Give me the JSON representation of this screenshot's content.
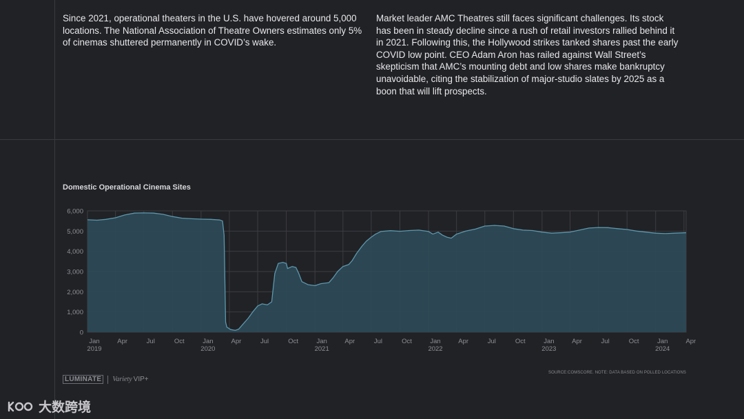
{
  "text": {
    "para_left": "Since 2021, operational theaters in the U.S. have hovered around 5,000 locations. The National Association of Theatre Owners estimates only 5% of cinemas shuttered permanently in COVID’s wake.",
    "para_right": "Market leader AMC Theatres still faces significant challenges. Its stock has been in steady decline since a rush of retail investors rallied behind it in 2021. Following this, the Hollywood strikes tanked shares past the early COVID low point. CEO Adam Aron has railed against Wall Street’s skepticism that AMC’s mounting debt and low shares make bankruptcy unavoidable, citing the stabilization of major-studio slates by 2025 as a boon that will lift prospects.",
    "source": "SOURCE:COMSCORE. NOTE: DATA BASED ON POLLED LOCATIONS",
    "logo_luminate": "LUMINATE",
    "logo_variety": "Variety",
    "logo_vip": "VIP+",
    "watermark": "大数跨境"
  },
  "colors": {
    "background": "#212226",
    "line": "#5b98ae",
    "fill": "#2e4a59",
    "grid": "#3c3d42"
  },
  "chart_data": {
    "type": "area",
    "title": "Domestic Operational Cinema Sites",
    "xlabel": "",
    "ylabel": "",
    "ylim": [
      0,
      6000
    ],
    "yticks": [
      0,
      1000,
      2000,
      3000,
      4000,
      5000,
      6000
    ],
    "ytick_labels": [
      "0",
      "1,000",
      "2,000",
      "3,000",
      "4,000",
      "5,000",
      "6,000"
    ],
    "xlim": [
      "2019-01-01",
      "2024-04-08"
    ],
    "xticks": [
      {
        "date": "2019-01-01",
        "label": "Jan",
        "year": "2019"
      },
      {
        "date": "2019-04-01",
        "label": "Apr",
        "year": ""
      },
      {
        "date": "2019-07-01",
        "label": "Jul",
        "year": ""
      },
      {
        "date": "2019-10-01",
        "label": "Oct",
        "year": ""
      },
      {
        "date": "2020-01-01",
        "label": "Jan",
        "year": "2020"
      },
      {
        "date": "2020-04-01",
        "label": "Apr",
        "year": ""
      },
      {
        "date": "2020-07-01",
        "label": "Jul",
        "year": ""
      },
      {
        "date": "2020-10-01",
        "label": "Oct",
        "year": ""
      },
      {
        "date": "2021-01-01",
        "label": "Jan",
        "year": "2021"
      },
      {
        "date": "2021-04-01",
        "label": "Apr",
        "year": ""
      },
      {
        "date": "2021-07-01",
        "label": "Jul",
        "year": ""
      },
      {
        "date": "2021-10-01",
        "label": "Oct",
        "year": ""
      },
      {
        "date": "2022-01-01",
        "label": "Jan",
        "year": "2022"
      },
      {
        "date": "2022-04-01",
        "label": "Apr",
        "year": ""
      },
      {
        "date": "2022-07-01",
        "label": "Jul",
        "year": ""
      },
      {
        "date": "2022-10-01",
        "label": "Oct",
        "year": ""
      },
      {
        "date": "2023-01-01",
        "label": "Jan",
        "year": "2023"
      },
      {
        "date": "2023-04-01",
        "label": "Apr",
        "year": ""
      },
      {
        "date": "2023-07-01",
        "label": "Jul",
        "year": ""
      },
      {
        "date": "2023-10-01",
        "label": "Oct",
        "year": ""
      },
      {
        "date": "2024-01-01",
        "label": "Jan",
        "year": "2024"
      },
      {
        "date": "2024-04-01",
        "label": "Apr",
        "year": ""
      }
    ],
    "grid": true,
    "series": [
      {
        "name": "",
        "points": [
          [
            "2019-01-01",
            5560
          ],
          [
            "2019-02-01",
            5540
          ],
          [
            "2019-03-01",
            5580
          ],
          [
            "2019-04-01",
            5660
          ],
          [
            "2019-05-01",
            5800
          ],
          [
            "2019-06-01",
            5890
          ],
          [
            "2019-07-01",
            5900
          ],
          [
            "2019-08-01",
            5890
          ],
          [
            "2019-09-01",
            5830
          ],
          [
            "2019-10-01",
            5720
          ],
          [
            "2019-11-01",
            5640
          ],
          [
            "2019-12-01",
            5610
          ],
          [
            "2020-01-01",
            5590
          ],
          [
            "2020-02-01",
            5580
          ],
          [
            "2020-03-01",
            5550
          ],
          [
            "2020-03-10",
            5500
          ],
          [
            "2020-03-15",
            4800
          ],
          [
            "2020-03-20",
            500
          ],
          [
            "2020-03-24",
            250
          ],
          [
            "2020-04-05",
            130
          ],
          [
            "2020-04-20",
            90
          ],
          [
            "2020-05-01",
            150
          ],
          [
            "2020-05-15",
            400
          ],
          [
            "2020-06-01",
            700
          ],
          [
            "2020-06-15",
            1000
          ],
          [
            "2020-07-01",
            1300
          ],
          [
            "2020-07-15",
            1400
          ],
          [
            "2020-08-01",
            1350
          ],
          [
            "2020-08-15",
            1500
          ],
          [
            "2020-08-25",
            2900
          ],
          [
            "2020-09-05",
            3400
          ],
          [
            "2020-09-20",
            3450
          ],
          [
            "2020-10-01",
            3400
          ],
          [
            "2020-10-05",
            3150
          ],
          [
            "2020-10-20",
            3250
          ],
          [
            "2020-11-01",
            3200
          ],
          [
            "2020-11-10",
            2900
          ],
          [
            "2020-11-20",
            2500
          ],
          [
            "2020-12-10",
            2350
          ],
          [
            "2021-01-01",
            2300
          ],
          [
            "2021-01-20",
            2400
          ],
          [
            "2021-02-15",
            2450
          ],
          [
            "2021-03-01",
            2700
          ],
          [
            "2021-03-15",
            3000
          ],
          [
            "2021-04-01",
            3250
          ],
          [
            "2021-04-20",
            3350
          ],
          [
            "2021-05-01",
            3550
          ],
          [
            "2021-05-15",
            3900
          ],
          [
            "2021-06-01",
            4250
          ],
          [
            "2021-06-15",
            4500
          ],
          [
            "2021-07-01",
            4700
          ],
          [
            "2021-07-15",
            4850
          ],
          [
            "2021-08-01",
            4980
          ],
          [
            "2021-09-01",
            5020
          ],
          [
            "2021-10-01",
            4990
          ],
          [
            "2021-11-01",
            5030
          ],
          [
            "2021-12-01",
            5050
          ],
          [
            "2022-01-01",
            4980
          ],
          [
            "2022-01-15",
            4850
          ],
          [
            "2022-02-01",
            4950
          ],
          [
            "2022-02-15",
            4800
          ],
          [
            "2022-03-01",
            4700
          ],
          [
            "2022-03-15",
            4650
          ],
          [
            "2022-04-01",
            4850
          ],
          [
            "2022-05-01",
            5000
          ],
          [
            "2022-06-01",
            5100
          ],
          [
            "2022-07-01",
            5250
          ],
          [
            "2022-08-01",
            5280
          ],
          [
            "2022-09-01",
            5250
          ],
          [
            "2022-10-01",
            5120
          ],
          [
            "2022-11-01",
            5050
          ],
          [
            "2022-12-01",
            5030
          ],
          [
            "2023-01-01",
            4950
          ],
          [
            "2023-02-01",
            4900
          ],
          [
            "2023-03-01",
            4920
          ],
          [
            "2023-04-01",
            4950
          ],
          [
            "2023-05-01",
            5050
          ],
          [
            "2023-06-01",
            5150
          ],
          [
            "2023-07-01",
            5180
          ],
          [
            "2023-08-01",
            5170
          ],
          [
            "2023-09-01",
            5120
          ],
          [
            "2023-10-01",
            5080
          ],
          [
            "2023-11-01",
            5000
          ],
          [
            "2023-12-01",
            4950
          ],
          [
            "2024-01-01",
            4900
          ],
          [
            "2024-02-01",
            4880
          ],
          [
            "2024-03-01",
            4900
          ],
          [
            "2024-04-08",
            4920
          ]
        ]
      }
    ]
  }
}
